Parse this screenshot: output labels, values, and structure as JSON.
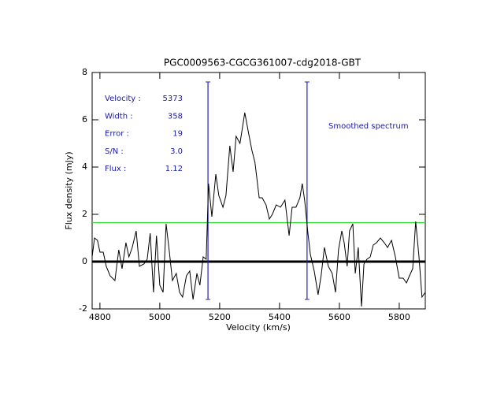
{
  "chart_data": {
    "type": "line",
    "title": "PGC0009563-CGCG361007-cdg2018-GBT",
    "x_label": "Velocity (km/s)",
    "y_label": "Flux density (mJy)",
    "color": "#000000",
    "x": [
      4774,
      4782,
      4792,
      4800,
      4811,
      4821,
      4834,
      4850,
      4863,
      4874,
      4887,
      4897,
      4908,
      4921,
      4932,
      4947,
      4958,
      4968,
      4979,
      4989,
      5000,
      5011,
      5021,
      5032,
      5042,
      5055,
      5066,
      5076,
      5089,
      5100,
      5111,
      5124,
      5134,
      5145,
      5155,
      5163,
      5174,
      5187,
      5197,
      5211,
      5221,
      5234,
      5245,
      5255,
      5268,
      5284,
      5297,
      5308,
      5318,
      5332,
      5342,
      5355,
      5366,
      5376,
      5389,
      5403,
      5418,
      5432,
      5442,
      5455,
      5468,
      5476,
      5484,
      5495,
      5503,
      5516,
      5529,
      5539,
      5550,
      5563,
      5576,
      5587,
      5597,
      5608,
      5616,
      5626,
      5634,
      5645,
      5653,
      5663,
      5674,
      5682,
      5692,
      5703,
      5713,
      5724,
      5737,
      5750,
      5761,
      5774,
      5787,
      5800,
      5813,
      5824,
      5834,
      5845,
      5855,
      5866,
      5876,
      5887
    ],
    "values": [
      0.2,
      1.0,
      0.9,
      0.4,
      0.4,
      -0.2,
      -0.6,
      -0.8,
      0.5,
      -0.3,
      0.8,
      0.2,
      0.6,
      1.3,
      -0.2,
      -0.1,
      0.1,
      1.2,
      -1.3,
      1.1,
      -1.0,
      -1.3,
      1.6,
      0.4,
      -0.8,
      -0.5,
      -1.3,
      -1.5,
      -0.6,
      -0.4,
      -1.6,
      -0.5,
      -1.0,
      0.2,
      0.1,
      3.3,
      1.9,
      3.7,
      2.8,
      2.3,
      2.8,
      4.9,
      3.8,
      5.3,
      5.0,
      6.3,
      5.4,
      4.7,
      4.2,
      2.7,
      2.7,
      2.4,
      1.8,
      2.0,
      2.4,
      2.3,
      2.6,
      1.1,
      2.3,
      2.3,
      2.7,
      3.3,
      2.6,
      1.2,
      0.3,
      -0.4,
      -1.4,
      -0.6,
      0.6,
      -0.2,
      -0.5,
      -1.3,
      0.5,
      1.3,
      0.8,
      -0.2,
      1.3,
      1.6,
      -0.5,
      0.6,
      -1.9,
      -0.1,
      0.1,
      0.2,
      0.7,
      0.8,
      1.0,
      0.8,
      0.6,
      0.9,
      0.2,
      -0.7,
      -0.7,
      -0.9,
      -0.6,
      -0.3,
      1.7,
      0.2,
      -1.5,
      -1.3
    ],
    "xlim": [
      4774,
      5887
    ],
    "ylim": [
      -2,
      8
    ],
    "xticks": [
      4800,
      5000,
      5200,
      5400,
      5600,
      5800
    ],
    "yticks": [
      -2,
      0,
      2,
      4,
      6,
      8
    ],
    "hlines": [
      {
        "value": 0,
        "color": "#000000"
      },
      {
        "value": 1.65,
        "color": "#33dd33"
      }
    ],
    "markers": {
      "x": [
        5161,
        5492
      ],
      "ylim": [
        -1.6,
        7.6
      ],
      "color": "#2222bb"
    },
    "stats": [
      {
        "label": "Velocity :",
        "value": "5373"
      },
      {
        "label": "Width :",
        "value": "358"
      },
      {
        "label": "Error :",
        "value": "19"
      },
      {
        "label": "S/N :",
        "value": "3.0"
      },
      {
        "label": "Flux :",
        "value": "1.12"
      }
    ],
    "annotation": "Smoothed spectrum"
  }
}
